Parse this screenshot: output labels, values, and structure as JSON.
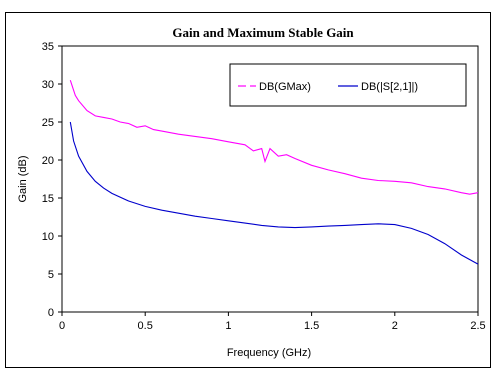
{
  "chart_data": {
    "type": "line",
    "title": "Gain and Maximum Stable Gain",
    "xlabel": "Frequency (GHz)",
    "ylabel": "Gain (dB)",
    "xlim": [
      0,
      2.5
    ],
    "ylim": [
      0,
      35
    ],
    "x_ticks": [
      "0",
      "0.5",
      "1",
      "1.5",
      "2",
      "2.5"
    ],
    "y_ticks": [
      "0",
      "5",
      "10",
      "15",
      "20",
      "25",
      "30",
      "35"
    ],
    "grid": false,
    "legend_position": "top-right",
    "series": [
      {
        "name": "DB(GMax)",
        "color": "#ff00ff",
        "dashed_marker": true,
        "x": [
          0.05,
          0.08,
          0.1,
          0.15,
          0.2,
          0.25,
          0.3,
          0.35,
          0.4,
          0.45,
          0.5,
          0.55,
          0.6,
          0.7,
          0.8,
          0.9,
          1.0,
          1.1,
          1.15,
          1.2,
          1.22,
          1.25,
          1.3,
          1.35,
          1.4,
          1.5,
          1.6,
          1.7,
          1.8,
          1.9,
          2.0,
          2.1,
          2.2,
          2.3,
          2.4,
          2.45,
          2.5
        ],
        "y": [
          30.5,
          28.5,
          27.8,
          26.5,
          25.8,
          25.6,
          25.4,
          25.0,
          24.8,
          24.3,
          24.5,
          24.0,
          23.8,
          23.4,
          23.1,
          22.8,
          22.4,
          22.0,
          21.2,
          21.5,
          19.8,
          21.5,
          20.5,
          20.7,
          20.2,
          19.3,
          18.7,
          18.2,
          17.6,
          17.3,
          17.2,
          17.0,
          16.5,
          16.2,
          15.7,
          15.5,
          15.7
        ]
      },
      {
        "name": "DB(|S[2,1]|)",
        "color": "#0000cc",
        "dashed_marker": false,
        "x": [
          0.05,
          0.07,
          0.1,
          0.15,
          0.2,
          0.25,
          0.3,
          0.4,
          0.5,
          0.6,
          0.7,
          0.8,
          0.9,
          1.0,
          1.1,
          1.2,
          1.3,
          1.4,
          1.5,
          1.6,
          1.7,
          1.8,
          1.9,
          2.0,
          2.1,
          2.2,
          2.3,
          2.4,
          2.5
        ],
        "y": [
          25.0,
          22.5,
          20.5,
          18.5,
          17.2,
          16.3,
          15.6,
          14.6,
          13.9,
          13.4,
          13.0,
          12.6,
          12.3,
          12.0,
          11.7,
          11.4,
          11.2,
          11.1,
          11.2,
          11.3,
          11.4,
          11.5,
          11.6,
          11.5,
          11.0,
          10.2,
          9.0,
          7.5,
          6.3
        ]
      }
    ]
  }
}
